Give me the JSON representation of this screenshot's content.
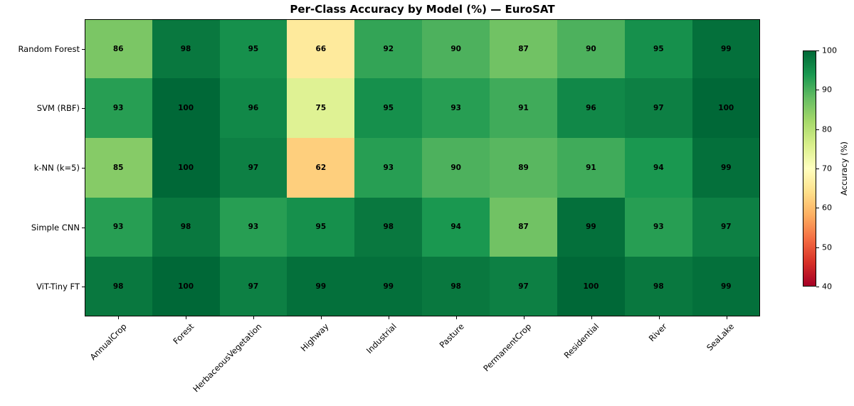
{
  "figure": {
    "title": "Per-Class Accuracy by Model (%) — EuroSAT",
    "background_color": "#ffffff",
    "axis_color": "#000000",
    "cell_text_color": "#000000"
  },
  "chart_data": {
    "type": "heatmap",
    "title": "Per-Class Accuracy by Model (%) — EuroSAT",
    "x_categories": [
      "AnnualCrop",
      "Forest",
      "HerbaceousVegetation",
      "Highway",
      "Industrial",
      "Pasture",
      "PermanentCrop",
      "Residential",
      "River",
      "SeaLake"
    ],
    "y_categories": [
      "Random Forest",
      "SVM (RBF)",
      "k-NN (k=5)",
      "Simple CNN",
      "ViT-Tiny FT"
    ],
    "series": [
      {
        "name": "Random Forest",
        "values": [
          86,
          98,
          95,
          66,
          92,
          90,
          87,
          90,
          95,
          99
        ]
      },
      {
        "name": "SVM (RBF)",
        "values": [
          93,
          100,
          96,
          75,
          95,
          93,
          91,
          96,
          97,
          100
        ]
      },
      {
        "name": "k-NN (k=5)",
        "values": [
          85,
          100,
          97,
          62,
          93,
          90,
          89,
          91,
          94,
          99
        ]
      },
      {
        "name": "Simple CNN",
        "values": [
          93,
          98,
          93,
          95,
          98,
          94,
          87,
          99,
          93,
          97
        ]
      },
      {
        "name": "ViT-Tiny FT",
        "values": [
          98,
          100,
          97,
          99,
          99,
          98,
          97,
          100,
          98,
          99
        ]
      }
    ],
    "value_unit": "%",
    "vmin": 40,
    "vmax": 100,
    "colormap": "RdYlGn",
    "colormap_anchors": [
      "#a50026",
      "#d73027",
      "#f46d43",
      "#fdae61",
      "#fee08b",
      "#ffffbf",
      "#d9ef8b",
      "#a6d96a",
      "#66bd63",
      "#1a9850",
      "#006837"
    ],
    "colorbar_label": "Accuracy (%)",
    "colorbar_ticks": [
      40,
      50,
      60,
      70,
      80,
      90,
      100
    ],
    "grid": false,
    "legend_position": "none"
  }
}
